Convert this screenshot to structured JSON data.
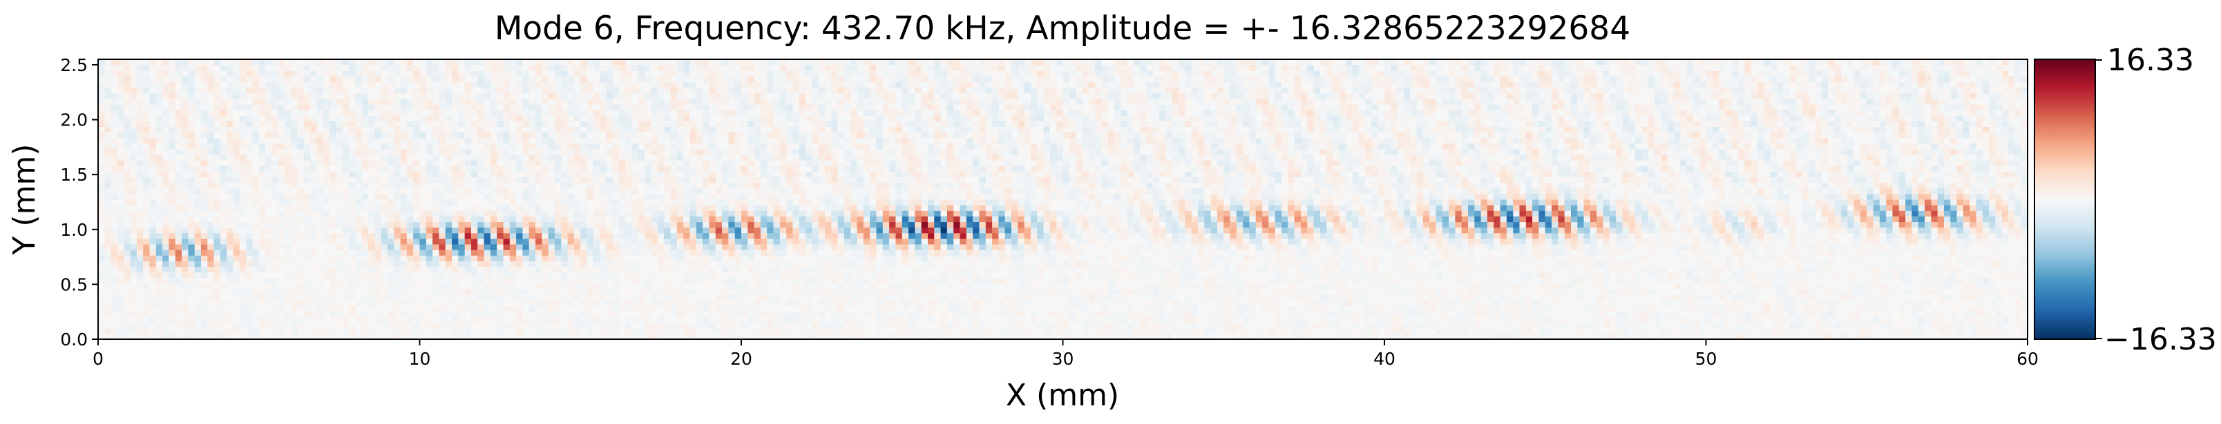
{
  "chart_data": {
    "type": "heatmap",
    "title": "Mode 6, Frequency: 432.70 kHz, Amplitude = +- 16.32865223292684",
    "xlabel": "X (mm)",
    "ylabel": "Y (mm)",
    "xlim": [
      0,
      60
    ],
    "ylim": [
      0,
      2.55
    ],
    "x_ticks": [
      0,
      10,
      20,
      30,
      40,
      50,
      60
    ],
    "x_tick_labels": [
      "0",
      "10",
      "20",
      "30",
      "40",
      "50",
      "60"
    ],
    "y_ticks": [
      0.0,
      0.5,
      1.0,
      1.5,
      2.0,
      2.5
    ],
    "y_tick_labels": [
      "0.0",
      "0.5",
      "1.0",
      "1.5",
      "2.0",
      "2.5"
    ],
    "colormap": "RdBu_r",
    "colorbar": {
      "max_label": "16.33",
      "min_label": "−16.33",
      "vmin": -16.33,
      "vmax": 16.33
    },
    "colors": {
      "max": "#67001f",
      "mid": "#f7f7f7",
      "min": "#053061"
    },
    "wave_packets": [
      {
        "x_start": 0.3,
        "x_end": 5.0,
        "y_center": 0.8,
        "wavelength": 0.95,
        "peak_amplitude": 9.5
      },
      {
        "x_start": 8.2,
        "x_end": 15.6,
        "y_center": 0.9,
        "wavelength": 1.05,
        "peak_amplitude": 14.0
      },
      {
        "x_start": 16.8,
        "x_end": 23.0,
        "y_center": 1.0,
        "wavelength": 1.1,
        "peak_amplitude": 11.0
      },
      {
        "x_start": 22.5,
        "x_end": 30.0,
        "y_center": 1.02,
        "wavelength": 1.0,
        "peak_amplitude": 16.3
      },
      {
        "x_start": 32.5,
        "x_end": 40.0,
        "y_center": 1.08,
        "wavelength": 1.15,
        "peak_amplitude": 8.5
      },
      {
        "x_start": 40.0,
        "x_end": 48.5,
        "y_center": 1.1,
        "wavelength": 1.05,
        "peak_amplitude": 13.5
      },
      {
        "x_start": 49.0,
        "x_end": 53.0,
        "y_center": 1.05,
        "wavelength": 1.1,
        "peak_amplitude": 4.0
      },
      {
        "x_start": 53.5,
        "x_end": 60.0,
        "y_center": 1.15,
        "wavelength": 1.1,
        "peak_amplitude": 11.0
      }
    ]
  }
}
